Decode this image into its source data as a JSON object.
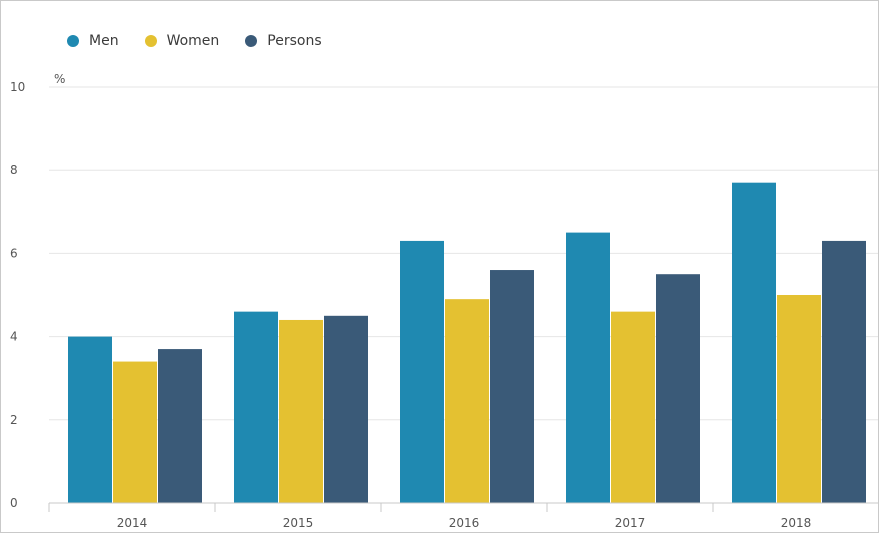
{
  "chart_data": {
    "type": "bar",
    "title": "",
    "xlabel": "",
    "ylabel": "%",
    "categories": [
      "2014",
      "2015",
      "2016",
      "2017",
      "2018"
    ],
    "series": [
      {
        "name": "Men",
        "color": "#1f89b1",
        "values": [
          4.0,
          4.6,
          6.3,
          6.5,
          7.7
        ]
      },
      {
        "name": "Women",
        "color": "#e4c131",
        "values": [
          3.4,
          4.4,
          4.9,
          4.6,
          5.0
        ]
      },
      {
        "name": "Persons",
        "color": "#3a5a78",
        "values": [
          3.7,
          4.5,
          5.6,
          5.5,
          6.3
        ]
      }
    ],
    "ylim": [
      0,
      10
    ],
    "yticks": [
      "0",
      "2",
      "4",
      "6",
      "8",
      "10"
    ],
    "grid": true,
    "legend_position": "top-left"
  }
}
